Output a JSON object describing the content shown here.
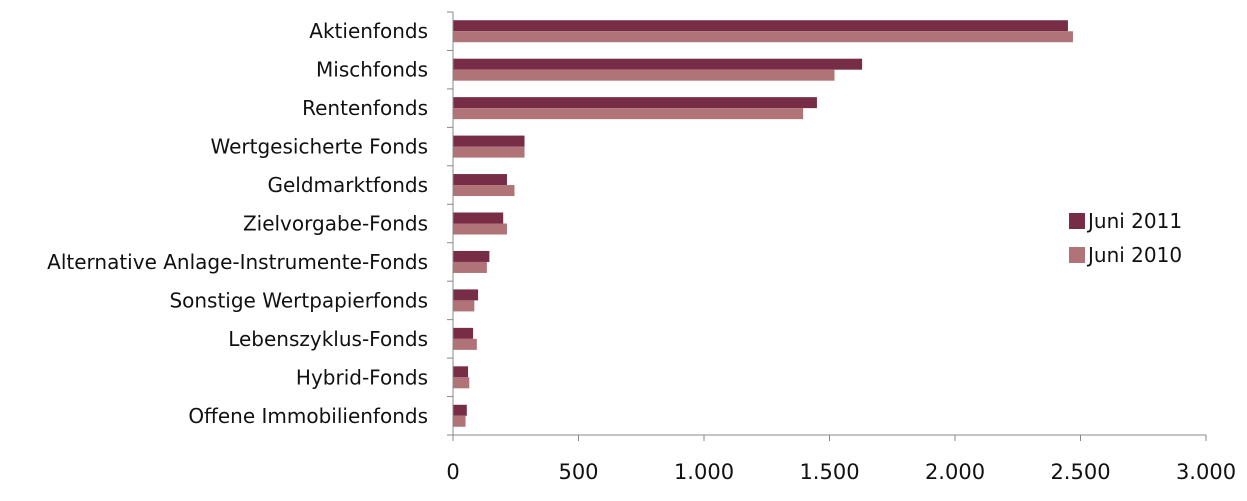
{
  "chart_data": {
    "type": "bar",
    "orientation": "horizontal",
    "title": "",
    "xlabel": "",
    "ylabel": "",
    "categories": [
      "Aktienfonds",
      "Mischfonds",
      "Rentenfonds",
      "Wertgesicherte Fonds",
      "Geldmarktfonds",
      "Zielvorgabe-Fonds",
      "Alternative Anlage-Instrumente-Fonds",
      "Sonstige Wertpapierfonds",
      "Lebenszyklus-Fonds",
      "Hybrid-Fonds",
      "Offene Immobilienfonds"
    ],
    "series": [
      {
        "name": "Juni 2011",
        "color": "#772d46",
        "values": [
          2450,
          1630,
          1450,
          285,
          215,
          200,
          145,
          100,
          80,
          60,
          55
        ]
      },
      {
        "name": "Juni 2010",
        "color": "#b07478",
        "values": [
          2470,
          1520,
          1395,
          285,
          245,
          215,
          135,
          85,
          95,
          65,
          50
        ]
      }
    ],
    "xlim": [
      0,
      3000
    ],
    "xticks": [
      0,
      500,
      1000,
      1500,
      2000,
      2500,
      3000
    ],
    "xtick_labels": [
      "0",
      "500",
      "1.000",
      "1.500",
      "2.000",
      "2.500",
      "3.000"
    ],
    "grid": false,
    "legend_position": "right"
  }
}
